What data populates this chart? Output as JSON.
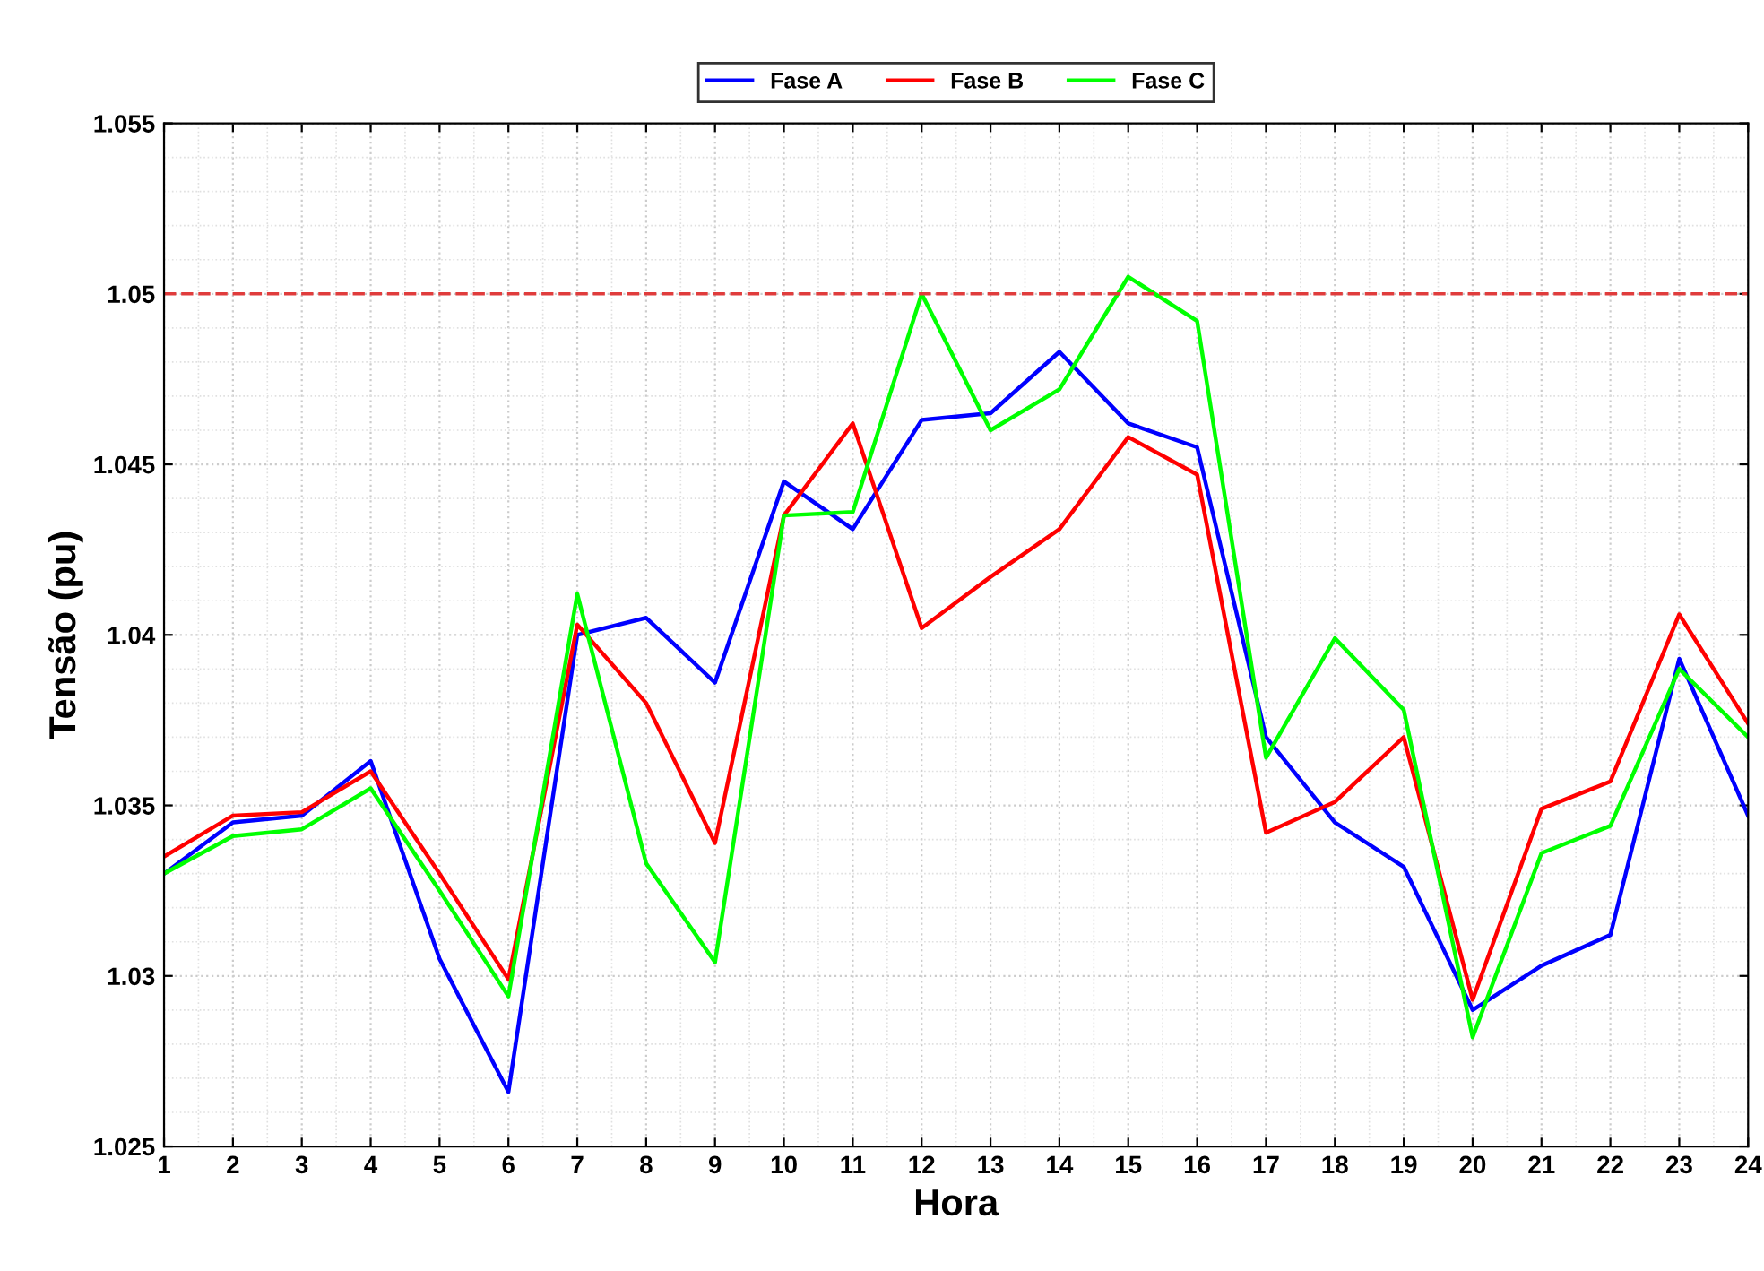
{
  "chart_data": {
    "type": "line",
    "xlabel": "Hora",
    "ylabel": "Tensão (pu)",
    "x": [
      1,
      2,
      3,
      4,
      5,
      6,
      7,
      8,
      9,
      10,
      11,
      12,
      13,
      14,
      15,
      16,
      17,
      18,
      19,
      20,
      21,
      22,
      23,
      24
    ],
    "xlim": [
      1,
      24
    ],
    "xticks": [
      1,
      2,
      3,
      4,
      5,
      6,
      7,
      8,
      9,
      10,
      11,
      12,
      13,
      14,
      15,
      16,
      17,
      18,
      19,
      20,
      21,
      22,
      23,
      24
    ],
    "ylim": [
      1.025,
      1.055
    ],
    "yticks": [
      1.025,
      1.03,
      1.035,
      1.04,
      1.045,
      1.05,
      1.055
    ],
    "grid": true,
    "legend": "top",
    "marker": "none",
    "line_style": "solid",
    "series": [
      {
        "name": "Fase A",
        "color": "#0000ff",
        "values": [
          1.033,
          1.0345,
          1.0347,
          1.0363,
          1.0305,
          1.0266,
          1.04,
          1.0405,
          1.0386,
          1.0445,
          1.0431,
          1.0463,
          1.0465,
          1.0483,
          1.0462,
          1.0455,
          1.037,
          1.0345,
          1.0332,
          1.029,
          1.0303,
          1.0312,
          1.0393,
          1.0347
        ]
      },
      {
        "name": "Fase B",
        "color": "#ff0000",
        "values": [
          1.0335,
          1.0347,
          1.0348,
          1.036,
          1.033,
          1.0299,
          1.0403,
          1.038,
          1.0339,
          1.0435,
          1.0462,
          1.0402,
          1.0417,
          1.0431,
          1.0458,
          1.0447,
          1.0342,
          1.0351,
          1.037,
          1.0293,
          1.0349,
          1.0357,
          1.0406,
          1.0374
        ]
      },
      {
        "name": "Fase C",
        "color": "#00ff00",
        "values": [
          1.033,
          1.0341,
          1.0343,
          1.0355,
          1.0325,
          1.0294,
          1.0412,
          1.0333,
          1.0304,
          1.0435,
          1.0436,
          1.05,
          1.046,
          1.0472,
          1.0505,
          1.0492,
          1.0364,
          1.0399,
          1.0378,
          1.0282,
          1.0336,
          1.0344,
          1.039,
          1.037
        ]
      }
    ],
    "ref_lines": [
      {
        "axis": "y",
        "value": 1.05,
        "color": "#e03c3c",
        "line_style": "dashed"
      }
    ]
  }
}
